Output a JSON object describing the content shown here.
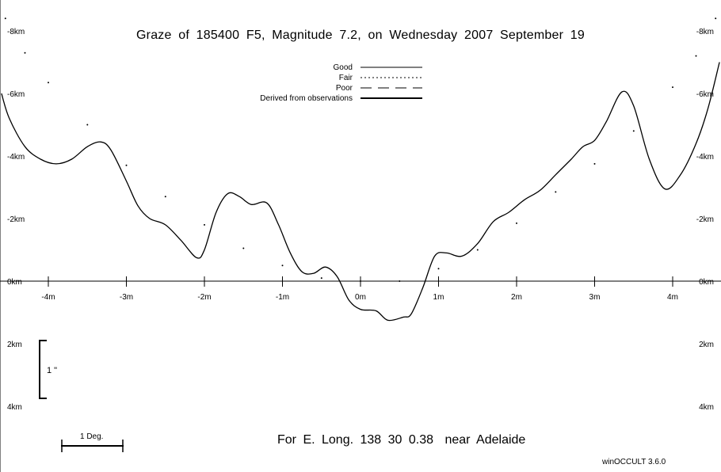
{
  "title": "Graze of   185400   F5,  Magnitude   7.2,  on Wednesday  2007  September  19",
  "footer": {
    "location_prefix": "For E. Long.  138 30  0.38",
    "location_name": "near Adelaide",
    "software": "winOCCULT 3.6.0"
  },
  "legend": [
    {
      "label": "Good",
      "style": "solid"
    },
    {
      "label": "Fair",
      "style": "dotted"
    },
    {
      "label": "Poor",
      "style": "dashed"
    },
    {
      "label": "Derived from observations",
      "style": "thick"
    }
  ],
  "scale_bars": {
    "angular_label": "1 \"",
    "degree_label": "1 Deg."
  },
  "chart_data": {
    "type": "line",
    "title": "Graze of   185400   F5,  Magnitude   7.2,  on Wednesday  2007  September  19",
    "xlabel": "",
    "ylabel": "",
    "xlim": [
      -4.6,
      4.6
    ],
    "ylim_km": [
      -8.5,
      6.0
    ],
    "grid": false,
    "legend_position": "top-center",
    "x_ticks": [
      {
        "value": -4,
        "label": "-4m"
      },
      {
        "value": -3,
        "label": "-3m"
      },
      {
        "value": -2,
        "label": "-2m"
      },
      {
        "value": -1,
        "label": "-1m"
      },
      {
        "value": 0,
        "label": "0m"
      },
      {
        "value": 1,
        "label": "1m"
      },
      {
        "value": 2,
        "label": "2m"
      },
      {
        "value": 3,
        "label": "3m"
      },
      {
        "value": 4,
        "label": "4m"
      }
    ],
    "y_ticks": [
      {
        "value": -8,
        "label": "-8km"
      },
      {
        "value": -6,
        "label": "-6km"
      },
      {
        "value": -4,
        "label": "-4km"
      },
      {
        "value": -2,
        "label": "-2km"
      },
      {
        "value": 0,
        "label": "0km"
      },
      {
        "value": 2,
        "label": "2km"
      },
      {
        "value": 4,
        "label": "4km"
      }
    ],
    "series": [
      {
        "name": "Good",
        "style": "solid",
        "points": [
          [
            -4.6,
            -6.0
          ],
          [
            -4.5,
            -5.2
          ],
          [
            -4.3,
            -4.3
          ],
          [
            -4.1,
            -3.9
          ],
          [
            -3.9,
            -3.75
          ],
          [
            -3.7,
            -3.9
          ],
          [
            -3.5,
            -4.3
          ],
          [
            -3.33,
            -4.45
          ],
          [
            -3.2,
            -4.2
          ],
          [
            -3.0,
            -3.2
          ],
          [
            -2.85,
            -2.4
          ],
          [
            -2.7,
            -2.0
          ],
          [
            -2.5,
            -1.8
          ],
          [
            -2.3,
            -1.3
          ],
          [
            -2.1,
            -0.75
          ],
          [
            -2.0,
            -1.0
          ],
          [
            -1.85,
            -2.2
          ],
          [
            -1.7,
            -2.8
          ],
          [
            -1.55,
            -2.7
          ],
          [
            -1.4,
            -2.45
          ],
          [
            -1.2,
            -2.5
          ],
          [
            -1.05,
            -1.8
          ],
          [
            -0.9,
            -0.9
          ],
          [
            -0.75,
            -0.3
          ],
          [
            -0.6,
            -0.25
          ],
          [
            -0.45,
            -0.45
          ],
          [
            -0.3,
            -0.15
          ],
          [
            -0.15,
            0.6
          ],
          [
            0.0,
            0.9
          ],
          [
            0.2,
            0.95
          ],
          [
            0.35,
            1.25
          ],
          [
            0.55,
            1.15
          ],
          [
            0.65,
            1.05
          ],
          [
            0.8,
            0.2
          ],
          [
            0.95,
            -0.8
          ],
          [
            1.1,
            -0.9
          ],
          [
            1.3,
            -0.8
          ],
          [
            1.5,
            -1.2
          ],
          [
            1.7,
            -1.9
          ],
          [
            1.9,
            -2.2
          ],
          [
            2.1,
            -2.6
          ],
          [
            2.3,
            -2.9
          ],
          [
            2.5,
            -3.4
          ],
          [
            2.7,
            -3.9
          ],
          [
            2.85,
            -4.3
          ],
          [
            3.0,
            -4.5
          ],
          [
            3.15,
            -5.1
          ],
          [
            3.35,
            -6.05
          ],
          [
            3.5,
            -5.6
          ],
          [
            3.7,
            -3.9
          ],
          [
            3.9,
            -2.95
          ],
          [
            4.1,
            -3.4
          ],
          [
            4.3,
            -4.4
          ],
          [
            4.45,
            -5.5
          ],
          [
            4.6,
            -7.0
          ]
        ]
      },
      {
        "name": "Fair",
        "style": "dotted",
        "points": [
          [
            -4.55,
            -8.4
          ],
          [
            -4.3,
            -7.3
          ],
          [
            -4.0,
            -6.35
          ],
          [
            -3.5,
            -5.0
          ],
          [
            -3.0,
            -3.7
          ],
          [
            -2.5,
            -2.7
          ],
          [
            -2.0,
            -1.8
          ],
          [
            -1.5,
            -1.05
          ],
          [
            -1.0,
            -0.5
          ],
          [
            -0.5,
            -0.1
          ],
          [
            0.0,
            0.0
          ],
          [
            0.5,
            0.0
          ],
          [
            1.0,
            -0.4
          ],
          [
            1.5,
            -1.0
          ],
          [
            2.0,
            -1.85
          ],
          [
            2.5,
            -2.85
          ],
          [
            3.0,
            -3.75
          ],
          [
            3.5,
            -4.8
          ],
          [
            4.0,
            -6.2
          ],
          [
            4.3,
            -7.2
          ],
          [
            4.55,
            -8.4
          ]
        ]
      }
    ]
  }
}
